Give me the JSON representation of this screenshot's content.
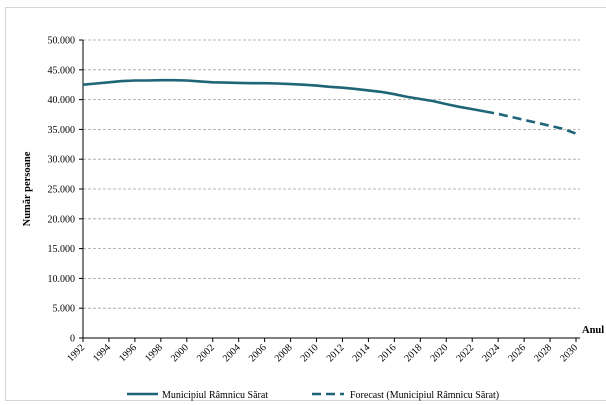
{
  "chart_data": {
    "type": "line",
    "xlabel": "Anul",
    "ylabel": "Număr persoane",
    "ylim": [
      0,
      50000
    ],
    "y_ticks": [
      "0",
      "5.000",
      "10.000",
      "15.000",
      "20.000",
      "25.000",
      "30.000",
      "35.000",
      "40.000",
      "45.000",
      "50.000"
    ],
    "x_ticks": [
      1992,
      1994,
      1996,
      1998,
      2000,
      2002,
      2004,
      2006,
      2008,
      2010,
      2012,
      2014,
      2016,
      2018,
      2020,
      2022,
      2024,
      2026,
      2028,
      2030
    ],
    "grid": "horizontal dashed",
    "legend_position": "bottom",
    "colors": {
      "series": "#1d6577",
      "forecast": "#1d6577",
      "grid": "#a0a0a0"
    },
    "series": [
      {
        "name": "Municipiul Râmnicu Sărat",
        "style": "solid",
        "x": [
          1992,
          1993,
          1994,
          1995,
          1996,
          1997,
          1998,
          1999,
          2000,
          2001,
          2002,
          2003,
          2004,
          2005,
          2006,
          2007,
          2008,
          2009,
          2010,
          2011,
          2012,
          2013,
          2014,
          2015,
          2016,
          2017,
          2018,
          2019,
          2020,
          2021,
          2022,
          2023
        ],
        "values": [
          42500,
          42700,
          42900,
          43100,
          43200,
          43200,
          43250,
          43250,
          43200,
          43050,
          42900,
          42850,
          42800,
          42750,
          42750,
          42700,
          42600,
          42500,
          42350,
          42150,
          42000,
          41800,
          41550,
          41300,
          40900,
          40450,
          40100,
          39750,
          39250,
          38800,
          38400,
          38000
        ]
      },
      {
        "name": "Forecast (Municipiul Râmnicu Sărat)",
        "style": "dashed",
        "x": [
          2023,
          2024,
          2025,
          2026,
          2027,
          2028,
          2029,
          2030
        ],
        "values": [
          38000,
          37600,
          37100,
          36600,
          36100,
          35600,
          35100,
          34300
        ]
      }
    ]
  }
}
